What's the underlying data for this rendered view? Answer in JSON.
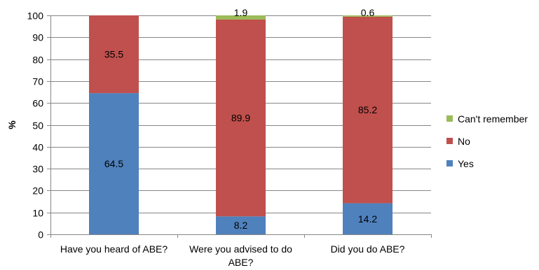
{
  "chart_data": {
    "type": "bar",
    "stacked": true,
    "title": "",
    "xlabel": "",
    "ylabel": "%",
    "ylim": [
      0,
      100
    ],
    "ytick_step": 10,
    "grid": true,
    "legend_position": "right",
    "categories": [
      [
        "Have you heard of ABE?"
      ],
      [
        "Were you advised to do",
        "ABE?"
      ],
      [
        "Did you do ABE?"
      ]
    ],
    "series": [
      {
        "name": "Yes",
        "color": "#4F81BD",
        "values": [
          64.5,
          8.2,
          14.2
        ],
        "labels": [
          "64.5",
          "8.2",
          "14.2"
        ]
      },
      {
        "name": "No",
        "color": "#C0504D",
        "values": [
          35.5,
          89.9,
          85.2
        ],
        "labels": [
          "35.5",
          "89.9",
          "85.2"
        ]
      },
      {
        "name": "Can't remember",
        "color": "#9BBB59",
        "values": [
          0,
          1.9,
          0.6
        ],
        "labels": [
          "",
          "1.9",
          "0.6"
        ]
      }
    ],
    "legend_order": [
      "Can't remember",
      "No",
      "Yes"
    ]
  }
}
